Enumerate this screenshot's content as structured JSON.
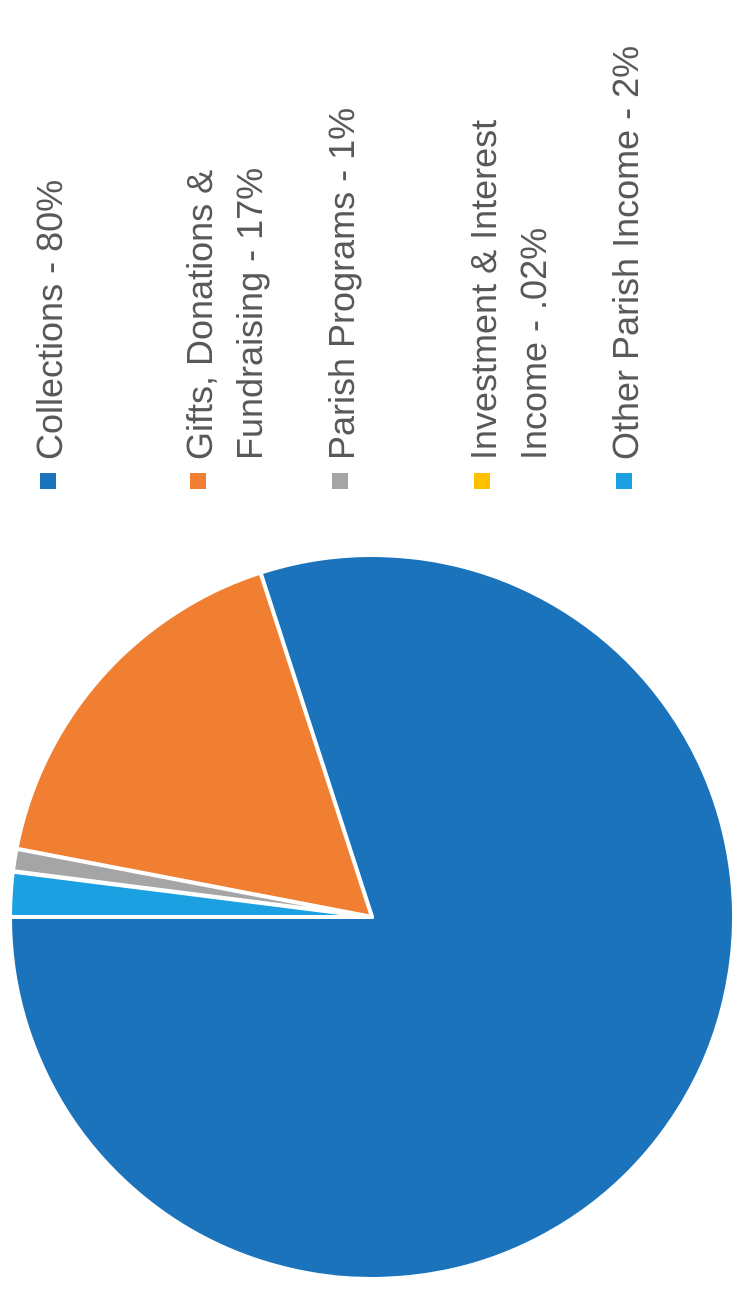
{
  "chart_data": {
    "type": "pie",
    "title": "",
    "rotation": "rotated 90 degrees clockwise",
    "legend_position": "right",
    "slices": [
      {
        "label": "Collections - 80%",
        "lines": [
          "Collections - 80%"
        ],
        "value": 80,
        "color": "#1a73bb"
      },
      {
        "label": "Gifts, Donations & Fundraising - 17%",
        "lines": [
          "Gifts, Donations &",
          "Fundraising - 17%"
        ],
        "value": 17,
        "color": "#f07f32"
      },
      {
        "label": "Parish Programs - 1%",
        "lines": [
          "Parish Programs - 1%"
        ],
        "value": 1,
        "color": "#a5a5a5"
      },
      {
        "label": "Investment & Interest Income - .02%",
        "lines": [
          "Investment & Interest",
          "Income - .02%"
        ],
        "value": 0.02,
        "color": "#ffc000"
      },
      {
        "label": "Other Parish Income - 2%",
        "lines": [
          "Other Parish Income - 2%"
        ],
        "value": 2,
        "color": "#1ba1e2"
      }
    ]
  }
}
